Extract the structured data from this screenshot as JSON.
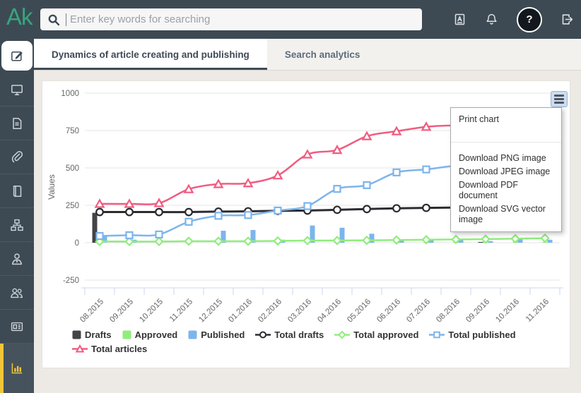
{
  "topbar": {
    "logo": "Ak",
    "search_placeholder": "Enter key words for searching",
    "avatar_glyph": "?"
  },
  "tabs": [
    {
      "label": "Dynamics of article creating and publishing",
      "active": true
    },
    {
      "label": "Search analytics",
      "active": false
    }
  ],
  "sidebar": {
    "accent_color": "#f2c438",
    "items": [
      "compose",
      "dashboard",
      "documents",
      "attachments",
      "library",
      "structure",
      "account",
      "users",
      "news",
      "analytics"
    ],
    "active_top": "compose",
    "active_bottom": "analytics"
  },
  "export_menu": {
    "items": [
      "Print chart",
      "Download PNG image",
      "Download JPEG image",
      "Download PDF document",
      "Download SVG vector image"
    ]
  },
  "chart_data": {
    "type": "combo-column-spline",
    "categories": [
      "08.2015",
      "09.2015",
      "10.2015",
      "11.2015",
      "12.2015",
      "01.2016",
      "02.2016",
      "03.2016",
      "04.2016",
      "05.2016",
      "06.2016",
      "07.2016",
      "08.2016",
      "09.2016",
      "10.2016",
      "11.2016"
    ],
    "ylabel": "Values",
    "yticks": [
      -250,
      0,
      250,
      500,
      750,
      1000
    ],
    "ylim": [
      -300,
      1050
    ],
    "grid": true,
    "legend_position": "bottom",
    "series": [
      {
        "name": "Drafts",
        "type": "bar",
        "color": "#434348",
        "values": [
          200,
          0,
          0,
          0,
          0,
          0,
          0,
          0,
          0,
          0,
          0,
          0,
          0,
          5,
          0,
          0
        ]
      },
      {
        "name": "Approved",
        "type": "bar",
        "color": "#90ed7d",
        "values": [
          20,
          5,
          0,
          5,
          0,
          0,
          5,
          10,
          5,
          5,
          5,
          5,
          5,
          5,
          8,
          5
        ]
      },
      {
        "name": "Published",
        "type": "bar",
        "color": "#7cb5ec",
        "values": [
          45,
          20,
          0,
          0,
          80,
          85,
          20,
          115,
          100,
          60,
          15,
          20,
          20,
          10,
          25,
          20
        ]
      },
      {
        "name": "Total drafts",
        "type": "spline",
        "color": "#2b2b30",
        "marker": "circle",
        "values": [
          205,
          205,
          205,
          205,
          208,
          210,
          213,
          215,
          220,
          225,
          230,
          233,
          235,
          236,
          237,
          238
        ]
      },
      {
        "name": "Total approved",
        "type": "spline",
        "color": "#90ed7d",
        "marker": "diamond",
        "values": [
          8,
          8,
          8,
          10,
          10,
          10,
          12,
          14,
          15,
          16,
          18,
          20,
          22,
          24,
          27,
          30
        ]
      },
      {
        "name": "Total published",
        "type": "spline",
        "color": "#7cb5ec",
        "marker": "square",
        "values": [
          45,
          50,
          55,
          140,
          180,
          185,
          215,
          245,
          360,
          385,
          470,
          490,
          515,
          522,
          528,
          535
        ]
      },
      {
        "name": "Total articles",
        "type": "spline",
        "color": "#f15c80",
        "marker": "triangle",
        "values": [
          260,
          260,
          265,
          358,
          392,
          398,
          450,
          590,
          620,
          712,
          745,
          775,
          785,
          792,
          798,
          805
        ]
      }
    ]
  }
}
